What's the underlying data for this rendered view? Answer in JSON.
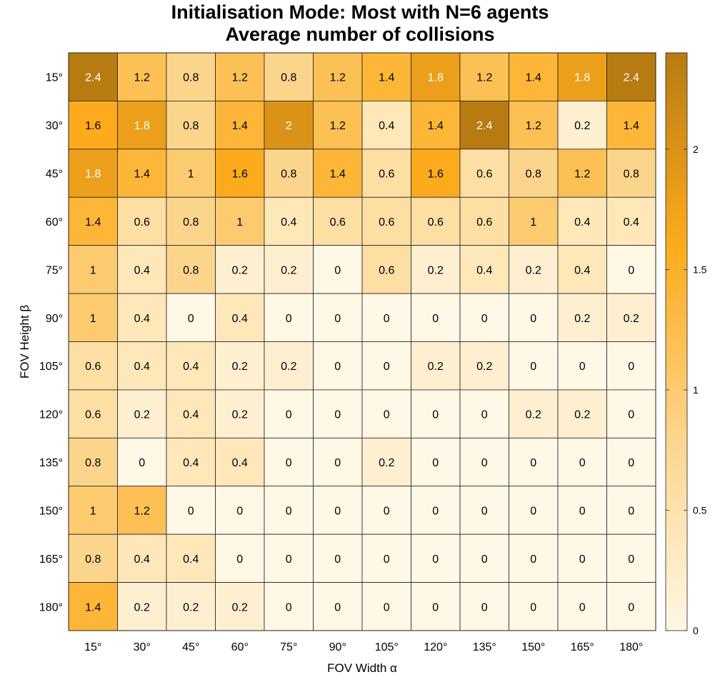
{
  "chart_data": {
    "type": "heatmap",
    "title_lines": [
      "Initialisation Mode: Most with N=6 agents",
      "Average number of collisions"
    ],
    "xlabel": "FOV Width α",
    "ylabel": "FOV Height β",
    "x_categories": [
      "15°",
      "30°",
      "45°",
      "60°",
      "75°",
      "90°",
      "105°",
      "120°",
      "135°",
      "150°",
      "165°",
      "180°"
    ],
    "y_categories": [
      "15°",
      "30°",
      "45°",
      "60°",
      "75°",
      "90°",
      "105°",
      "120°",
      "135°",
      "150°",
      "165°",
      "180°"
    ],
    "values": [
      [
        2.4,
        1.2,
        0.8,
        1.2,
        0.8,
        1.2,
        1.4,
        1.8,
        1.2,
        1.4,
        1.8,
        2.4
      ],
      [
        1.6,
        1.8,
        0.8,
        1.4,
        2,
        1.2,
        0.4,
        1.4,
        2.4,
        1.2,
        0.2,
        1.4
      ],
      [
        1.8,
        1.4,
        1,
        1.6,
        0.8,
        1.4,
        0.6,
        1.6,
        0.6,
        0.8,
        1.2,
        0.8
      ],
      [
        1.4,
        0.6,
        0.8,
        1,
        0.4,
        0.6,
        0.6,
        0.6,
        0.6,
        1,
        0.4,
        0.4
      ],
      [
        1,
        0.4,
        0.8,
        0.2,
        0.2,
        0,
        0.6,
        0.2,
        0.4,
        0.2,
        0.4,
        0
      ],
      [
        1,
        0.4,
        0,
        0.4,
        0,
        0,
        0,
        0,
        0,
        0,
        0.2,
        0.2
      ],
      [
        0.6,
        0.4,
        0.4,
        0.2,
        0.2,
        0,
        0,
        0.2,
        0.2,
        0,
        0,
        0
      ],
      [
        0.6,
        0.2,
        0.4,
        0.2,
        0,
        0,
        0,
        0,
        0,
        0.2,
        0.2,
        0
      ],
      [
        0.8,
        0,
        0.4,
        0.4,
        0,
        0,
        0.2,
        0,
        0,
        0,
        0,
        0
      ],
      [
        1,
        1.2,
        0,
        0,
        0,
        0,
        0,
        0,
        0,
        0,
        0,
        0
      ],
      [
        0.8,
        0.4,
        0.4,
        0,
        0,
        0,
        0,
        0,
        0,
        0,
        0,
        0
      ],
      [
        1.4,
        0.2,
        0.2,
        0.2,
        0,
        0,
        0,
        0,
        0,
        0,
        0,
        0
      ]
    ],
    "value_range": [
      0,
      2.4
    ],
    "colorbar_ticks": [
      "0",
      "0.5",
      "1",
      "1.5",
      "2"
    ],
    "colormap": [
      "#fff8e6",
      "#fcd58c",
      "#fdab1c",
      "#b77b12"
    ]
  }
}
